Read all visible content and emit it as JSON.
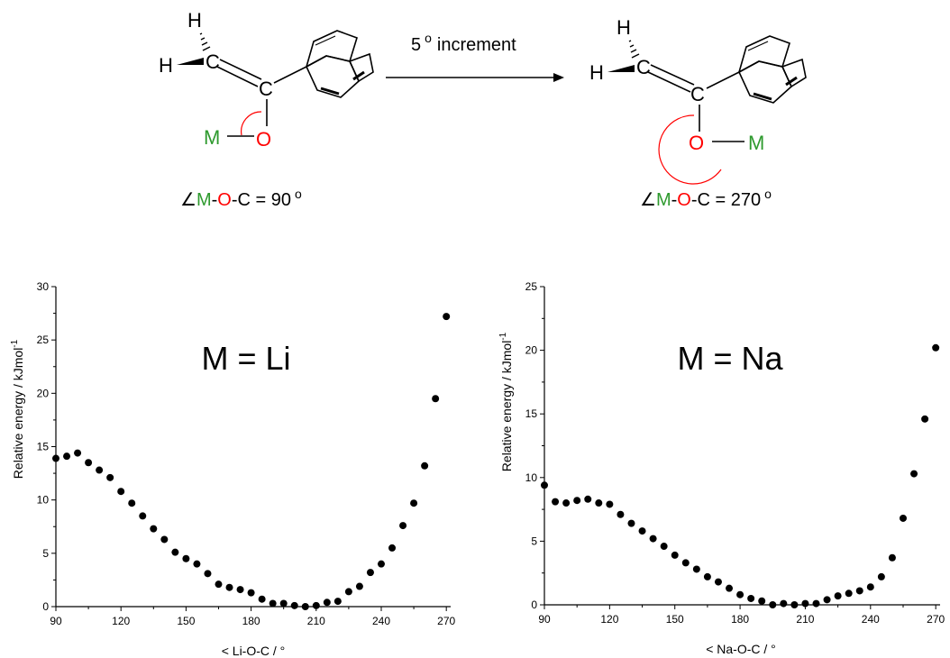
{
  "scheme": {
    "arrow_label_num": "5",
    "arrow_label_deg": "o",
    "arrow_label_word": "increment",
    "left": {
      "h_top": "H",
      "h_left": "H",
      "c_top": "C",
      "c_mid": "C",
      "m": "M",
      "o": "O",
      "caption_angle": "∠",
      "caption_m": "M",
      "caption_dash1": "-",
      "caption_o": "O",
      "caption_rest": "-C = 90",
      "caption_deg": "o"
    },
    "right": {
      "h_top": "H",
      "h_left": "H",
      "c_top": "C",
      "c_mid": "C",
      "m": "M",
      "o": "O",
      "caption_angle": "∠",
      "caption_m": "M",
      "caption_dash1": "-",
      "caption_o": "O",
      "caption_rest": "-C = 270",
      "caption_deg": "o"
    },
    "colors": {
      "metal": "#2e9a2e",
      "oxygen": "#ff0000",
      "bond": "#000000"
    }
  },
  "chart_data": [
    {
      "type": "scatter",
      "annotation": "M = Li",
      "xlabel": "< Li-O-C / °",
      "ylabel_main": "Relative energy / kJmol",
      "ylabel_sup": "-1",
      "xlim": [
        90,
        272
      ],
      "ylim": [
        0,
        30
      ],
      "xticks": [
        90,
        120,
        150,
        180,
        210,
        240,
        270
      ],
      "yticks": [
        0,
        5,
        10,
        15,
        20,
        25,
        30
      ],
      "marker_color": "#000000",
      "x": [
        90,
        95,
        100,
        105,
        110,
        115,
        120,
        125,
        130,
        135,
        140,
        145,
        150,
        155,
        160,
        165,
        170,
        175,
        180,
        185,
        190,
        195,
        200,
        205,
        210,
        215,
        220,
        225,
        230,
        235,
        240,
        245,
        250,
        255,
        260,
        265,
        270
      ],
      "y": [
        13.9,
        14.1,
        14.4,
        13.5,
        12.8,
        12.1,
        10.8,
        9.7,
        8.5,
        7.3,
        6.3,
        5.1,
        4.5,
        4.0,
        3.1,
        2.1,
        1.8,
        1.6,
        1.3,
        0.7,
        0.3,
        0.3,
        0.1,
        0.0,
        0.1,
        0.4,
        0.5,
        1.4,
        1.9,
        3.2,
        4.0,
        5.5,
        7.6,
        9.7,
        13.2,
        19.5,
        27.2
      ]
    },
    {
      "type": "scatter",
      "annotation": "M = Na",
      "xlabel": "< Na-O-C / °",
      "ylabel_main": "Relative energy / kJmol",
      "ylabel_sup": "-1",
      "xlim": [
        90,
        272
      ],
      "ylim": [
        0,
        25
      ],
      "xticks": [
        90,
        120,
        150,
        180,
        210,
        240,
        270
      ],
      "yticks": [
        0,
        5,
        10,
        15,
        20,
        25
      ],
      "marker_color": "#000000",
      "x": [
        90,
        95,
        100,
        105,
        110,
        115,
        120,
        125,
        130,
        135,
        140,
        145,
        150,
        155,
        160,
        165,
        170,
        175,
        180,
        185,
        190,
        195,
        200,
        205,
        210,
        215,
        220,
        225,
        230,
        235,
        240,
        245,
        250,
        255,
        260,
        265,
        270
      ],
      "y": [
        9.4,
        8.1,
        8.0,
        8.2,
        8.3,
        8.0,
        7.9,
        7.1,
        6.4,
        5.8,
        5.2,
        4.6,
        3.9,
        3.3,
        2.8,
        2.2,
        1.8,
        1.3,
        0.8,
        0.5,
        0.3,
        0.0,
        0.1,
        0.0,
        0.1,
        0.1,
        0.4,
        0.7,
        0.9,
        1.1,
        1.4,
        2.2,
        3.7,
        6.8,
        10.3,
        14.6,
        20.2
      ]
    }
  ]
}
